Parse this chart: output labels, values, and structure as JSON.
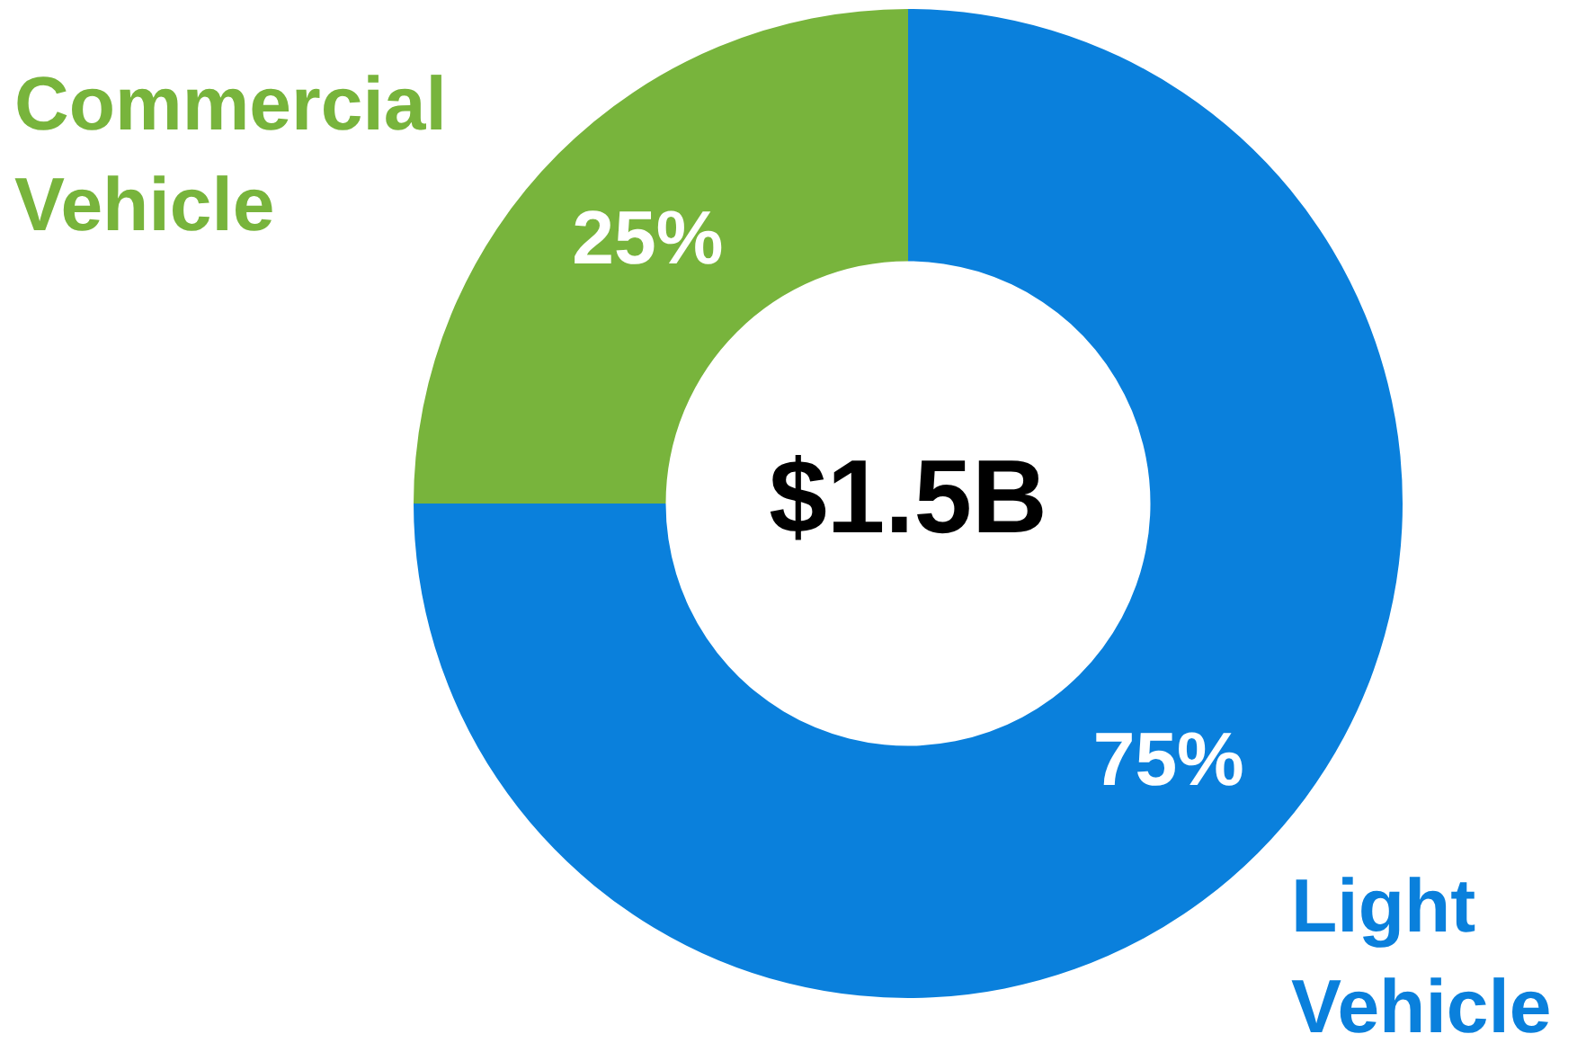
{
  "chart_data": {
    "type": "donut",
    "categories": [
      "Light Vehicle",
      "Commercial Vehicle"
    ],
    "values": [
      75,
      25
    ],
    "colors": [
      "#0a80dc",
      "#78b43c"
    ],
    "value_labels": [
      "75%",
      "25%"
    ],
    "annotations": [
      "$1.5B"
    ],
    "legend": false
  }
}
